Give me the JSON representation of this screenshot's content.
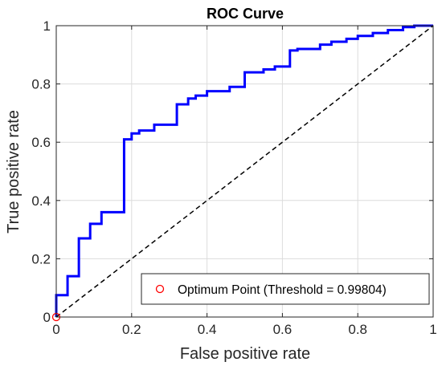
{
  "chart_data": {
    "type": "line",
    "title": "ROC Curve",
    "xlabel": "False positive rate",
    "ylabel": "True positive rate",
    "xlim": [
      0,
      1
    ],
    "ylim": [
      0,
      1
    ],
    "x_ticks": [
      "0",
      "0.2",
      "0.4",
      "0.6",
      "0.8",
      "1"
    ],
    "y_ticks": [
      "0",
      "0.2",
      "0.4",
      "0.6",
      "0.8",
      "1"
    ],
    "grid": true,
    "legend_position": "bottom-right",
    "series": [
      {
        "kind": "roc",
        "color": "#0000ff",
        "points": [
          [
            0,
            0
          ],
          [
            0,
            0.075
          ],
          [
            0.03,
            0.075
          ],
          [
            0.03,
            0.14
          ],
          [
            0.06,
            0.14
          ],
          [
            0.06,
            0.27
          ],
          [
            0.09,
            0.27
          ],
          [
            0.09,
            0.32
          ],
          [
            0.12,
            0.32
          ],
          [
            0.12,
            0.36
          ],
          [
            0.18,
            0.36
          ],
          [
            0.18,
            0.61
          ],
          [
            0.2,
            0.61
          ],
          [
            0.2,
            0.63
          ],
          [
            0.22,
            0.63
          ],
          [
            0.22,
            0.64
          ],
          [
            0.26,
            0.64
          ],
          [
            0.26,
            0.66
          ],
          [
            0.32,
            0.66
          ],
          [
            0.32,
            0.73
          ],
          [
            0.35,
            0.73
          ],
          [
            0.35,
            0.75
          ],
          [
            0.37,
            0.75
          ],
          [
            0.37,
            0.76
          ],
          [
            0.4,
            0.76
          ],
          [
            0.4,
            0.775
          ],
          [
            0.46,
            0.775
          ],
          [
            0.46,
            0.79
          ],
          [
            0.5,
            0.79
          ],
          [
            0.5,
            0.84
          ],
          [
            0.55,
            0.84
          ],
          [
            0.55,
            0.85
          ],
          [
            0.58,
            0.85
          ],
          [
            0.58,
            0.86
          ],
          [
            0.62,
            0.86
          ],
          [
            0.62,
            0.915
          ],
          [
            0.64,
            0.915
          ],
          [
            0.64,
            0.92
          ],
          [
            0.7,
            0.92
          ],
          [
            0.7,
            0.935
          ],
          [
            0.73,
            0.935
          ],
          [
            0.73,
            0.945
          ],
          [
            0.77,
            0.945
          ],
          [
            0.77,
            0.955
          ],
          [
            0.8,
            0.955
          ],
          [
            0.8,
            0.965
          ],
          [
            0.84,
            0.965
          ],
          [
            0.84,
            0.975
          ],
          [
            0.88,
            0.975
          ],
          [
            0.88,
            0.985
          ],
          [
            0.92,
            0.985
          ],
          [
            0.92,
            0.995
          ],
          [
            0.95,
            0.995
          ],
          [
            0.95,
            1
          ],
          [
            1,
            1
          ]
        ]
      },
      {
        "kind": "reference",
        "color": "#000000",
        "dashed": true,
        "points": [
          [
            0,
            0
          ],
          [
            1,
            1
          ]
        ]
      }
    ],
    "markers": [
      {
        "x": 0,
        "y": 0,
        "color": "#ff0000",
        "shape": "circle-open",
        "label": "Optimum Point (Threshold = 0.99804)"
      }
    ]
  }
}
